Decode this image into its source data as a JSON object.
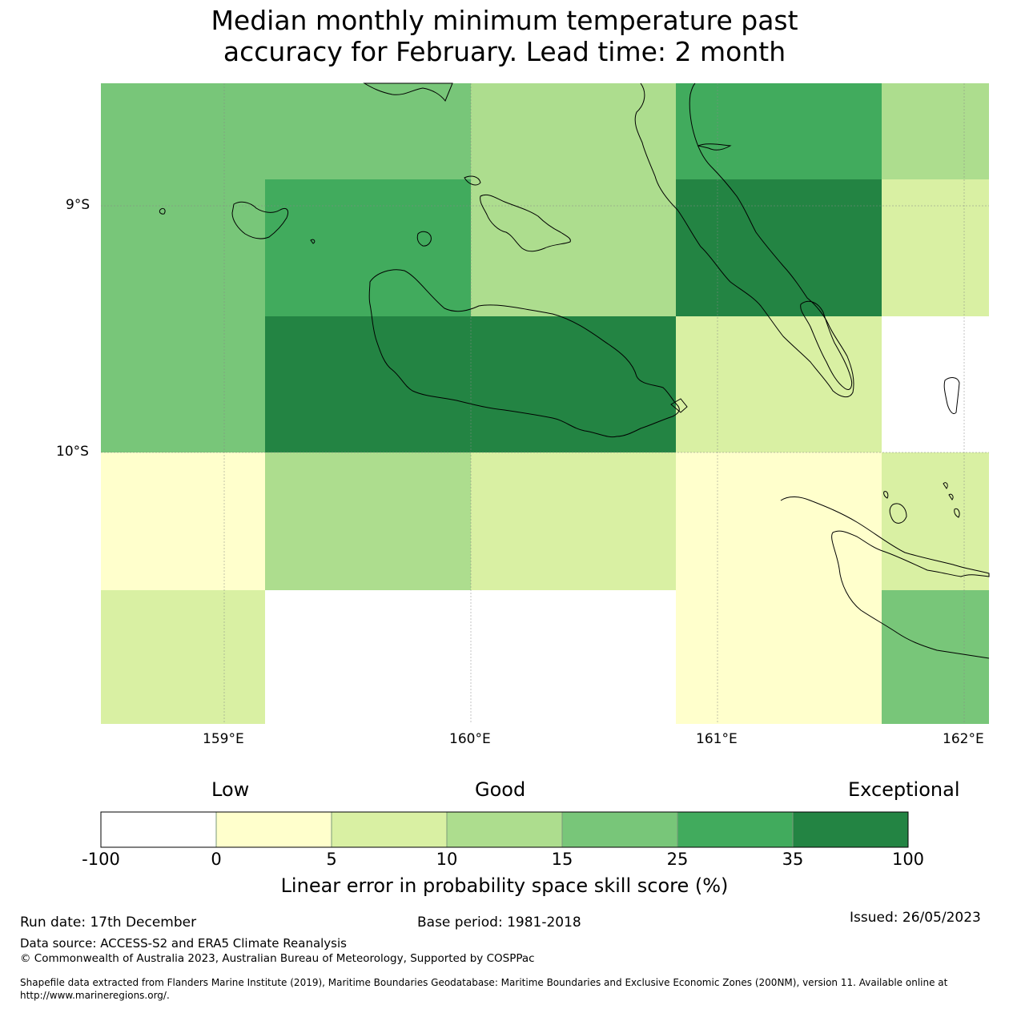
{
  "title_lines": [
    "Median monthly minimum temperature past",
    "accuracy for February. Lead time: 2 month"
  ],
  "axes": {
    "lat_ticks": [
      "9°S",
      "10°S"
    ],
    "lon_ticks": [
      "159°E",
      "160°E",
      "161°E",
      "162°E"
    ]
  },
  "grid_cells": [
    {
      "row": 0,
      "col": 0,
      "value": "15-25",
      "color": "#78c679"
    },
    {
      "row": 0,
      "col": 1,
      "value": "15-25",
      "color": "#78c679"
    },
    {
      "row": 0,
      "col": 2,
      "value": "10-15",
      "color": "#addd8e"
    },
    {
      "row": 0,
      "col": 3,
      "value": "25-35",
      "color": "#41ab5d"
    },
    {
      "row": 0,
      "col": 4,
      "value": "10-15",
      "color": "#addd8e"
    },
    {
      "row": 1,
      "col": 0,
      "value": "15-25",
      "color": "#78c679"
    },
    {
      "row": 1,
      "col": 1,
      "value": "25-35",
      "color": "#41ab5d"
    },
    {
      "row": 1,
      "col": 2,
      "value": "10-15",
      "color": "#addd8e"
    },
    {
      "row": 1,
      "col": 3,
      "value": "35-100",
      "color": "#238443"
    },
    {
      "row": 1,
      "col": 4,
      "value": "5-10",
      "color": "#d9f0a3"
    },
    {
      "row": 2,
      "col": 0,
      "value": "15-25",
      "color": "#78c679"
    },
    {
      "row": 2,
      "col": 1,
      "value": "35-100",
      "color": "#238443"
    },
    {
      "row": 2,
      "col": 2,
      "value": "35-100",
      "color": "#238443"
    },
    {
      "row": 2,
      "col": 3,
      "value": "5-10",
      "color": "#d9f0a3"
    },
    {
      "row": 2,
      "col": 4,
      "value": "-100-0",
      "color": "#ffffff"
    },
    {
      "row": 3,
      "col": 0,
      "value": "0-5",
      "color": "#ffffcc"
    },
    {
      "row": 3,
      "col": 1,
      "value": "10-15",
      "color": "#addd8e"
    },
    {
      "row": 3,
      "col": 2,
      "value": "5-10",
      "color": "#d9f0a3"
    },
    {
      "row": 3,
      "col": 3,
      "value": "0-5",
      "color": "#ffffcc"
    },
    {
      "row": 3,
      "col": 4,
      "value": "5-10",
      "color": "#d9f0a3"
    },
    {
      "row": 4,
      "col": 0,
      "value": "5-10",
      "color": "#d9f0a3"
    },
    {
      "row": 4,
      "col": 1,
      "value": "-100-0",
      "color": "#ffffff"
    },
    {
      "row": 4,
      "col": 2,
      "value": "-100-0",
      "color": "#ffffff"
    },
    {
      "row": 4,
      "col": 3,
      "value": "0-5",
      "color": "#ffffcc"
    },
    {
      "row": 4,
      "col": 4,
      "value": "15-25",
      "color": "#78c679"
    }
  ],
  "legend": {
    "categories": [
      "Low",
      "Good",
      "Exceptional"
    ],
    "bounds": [
      "-100",
      "0",
      "5",
      "10",
      "15",
      "25",
      "35",
      "100"
    ],
    "colors": [
      "#ffffff",
      "#ffffcc",
      "#d9f0a3",
      "#addd8e",
      "#78c679",
      "#41ab5d",
      "#238443"
    ],
    "title": "Linear error in probability space skill score (%)"
  },
  "footer": {
    "run_date": "Run date: 17th December",
    "base_period": "Base period: 1981-2018",
    "issued": "Issued: 26/05/2023",
    "data_source": "Data source: ACCESS-S2 and ERA5 Climate Reanalysis",
    "copyright": "© Commonwealth of Australia 2023, Australian Bureau of Meteorology, Supported by COSPPac",
    "shapefile_line1": "Shapefile data extracted from Flanders Marine Institute (2019), Maritime Boundaries Geodatabase: Maritime Boundaries and Exclusive Economic Zones (200NM), version 11. Available online at",
    "shapefile_line2": "http://www.marineregions.org/."
  }
}
